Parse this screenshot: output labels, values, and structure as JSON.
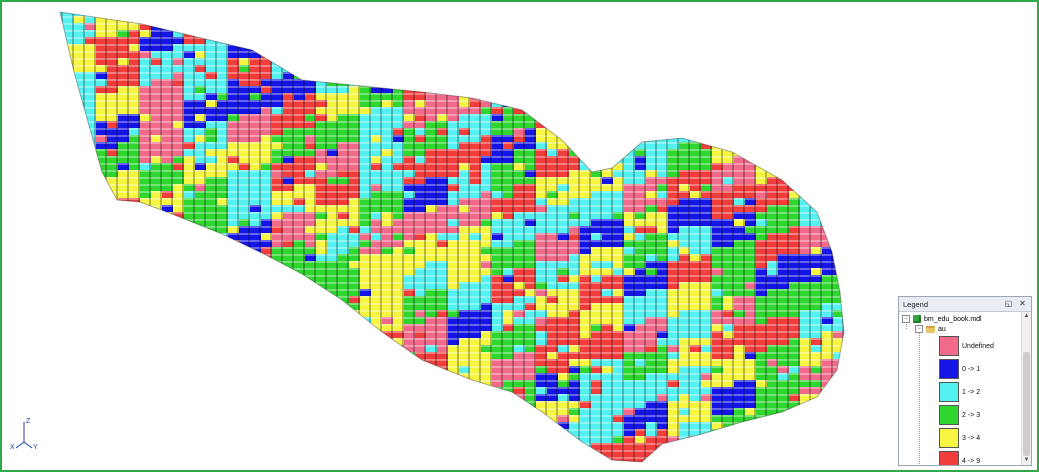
{
  "viewport": {
    "description_name": "block model 3D view",
    "palette": {
      "undefined": "#f26a8a",
      "c0_1": "#1515e6",
      "c1_2": "#55f0f0",
      "c2_3": "#2fd62f",
      "c3_4": "#f5f542",
      "c4_9": "#f23d3d"
    }
  },
  "axes": {
    "z_label": "Z",
    "x_label": "X",
    "y_label": "Y"
  },
  "legend": {
    "title": "Legend",
    "root_label": "bm_edu_book.mdl",
    "folder_label": "au",
    "items": [
      {
        "label": "Undefined",
        "color": "#f26a8a"
      },
      {
        "label": "0 -> 1",
        "color": "#1515e6"
      },
      {
        "label": "1 -> 2",
        "color": "#55f0f0"
      },
      {
        "label": "2 -> 3",
        "color": "#2fd62f"
      },
      {
        "label": "3 -> 4",
        "color": "#f5f542"
      },
      {
        "label": "4 -> 9",
        "color": "#f23d3d"
      }
    ]
  }
}
